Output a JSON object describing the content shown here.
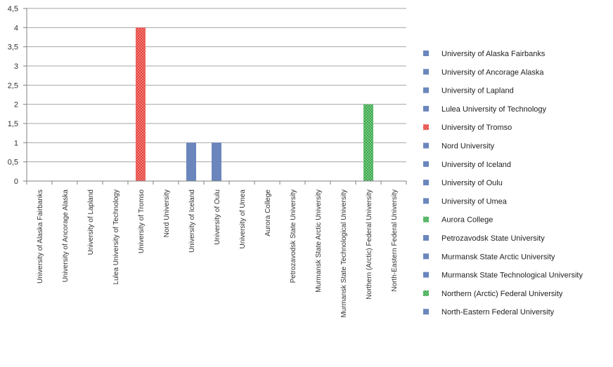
{
  "chart_data": {
    "type": "bar",
    "title": "",
    "xlabel": "",
    "ylabel": "",
    "ylim": [
      0,
      4.5
    ],
    "yticks": [
      "0",
      "0,5",
      "1",
      "1,5",
      "2",
      "2,5",
      "3",
      "3,5",
      "4",
      "4,5"
    ],
    "grid": true,
    "legend_position": "right",
    "categories": [
      "University of Alaska Fairbanks",
      "University of Ancorage Alaska",
      "University of Lapland",
      "Lulea University of Technology",
      "University of Tromso",
      "Nord University",
      "University of Iceland",
      "University of Oulu",
      "University of Umea",
      "Aurora College",
      "Petrozavodsk State University",
      "Murmansk State Arctic University",
      "Murmansk State Technological University",
      "Northern (Arctic) Federal University",
      "North-Eastern Federal University"
    ],
    "values": [
      0,
      0,
      0,
      0,
      4,
      0,
      1,
      1,
      0,
      0,
      0,
      0,
      0,
      2,
      0
    ],
    "legend": [
      {
        "label": "University of Alaska Fairbanks",
        "color": "#6b86bd",
        "marker": "square"
      },
      {
        "label": "University of Ancorage Alaska",
        "color": "#6b86bd",
        "marker": "square"
      },
      {
        "label": "University of Lapland",
        "color": "#6b86bd",
        "marker": "square"
      },
      {
        "label": "Lulea University of Technology",
        "color": "#6b86bd",
        "marker": "square"
      },
      {
        "label": "University of Tromso",
        "color": "#e5403a",
        "marker": "dotted"
      },
      {
        "label": "Nord University",
        "color": "#6b86bd",
        "marker": "square"
      },
      {
        "label": "University of Iceland",
        "color": "#6b86bd",
        "marker": "square"
      },
      {
        "label": "University of Oulu",
        "color": "#6b86bd",
        "marker": "square"
      },
      {
        "label": "University of Umea",
        "color": "#6b86bd",
        "marker": "square"
      },
      {
        "label": "Aurora College",
        "color": "#3aa84a",
        "marker": "dotted"
      },
      {
        "label": "Petrozavodsk State University",
        "color": "#6b86bd",
        "marker": "square"
      },
      {
        "label": "Murmansk State Arctic University",
        "color": "#6b86bd",
        "marker": "square"
      },
      {
        "label": "Murmansk State Technological University",
        "color": "#6b86bd",
        "marker": "square"
      },
      {
        "label": "Northern (Arctic) Federal University",
        "color": "#3aa84a",
        "marker": "dotted"
      },
      {
        "label": "North-Eastern Federal University",
        "color": "#6b86bd",
        "marker": "square"
      }
    ],
    "bar_colors": [
      "#6b86bd",
      "#6b86bd",
      "#6b86bd",
      "#6b86bd",
      "#e5403a",
      "#6b86bd",
      "#6b86bd",
      "#6b86bd",
      "#6b86bd",
      "#3aa84a",
      "#6b86bd",
      "#6b86bd",
      "#6b86bd",
      "#3aa84a",
      "#6b86bd"
    ],
    "bar_patterns": [
      "solid",
      "solid",
      "solid",
      "solid",
      "dotted",
      "solid",
      "solid",
      "solid",
      "solid",
      "dotted",
      "solid",
      "solid",
      "solid",
      "dotted",
      "solid"
    ],
    "gridline_color": "#a6a6a6"
  }
}
